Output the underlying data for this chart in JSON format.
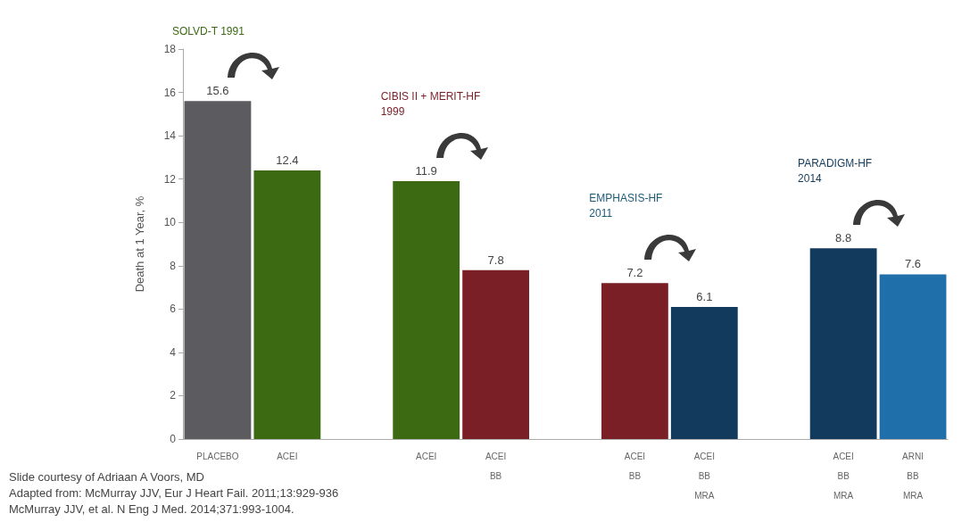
{
  "chart_data": {
    "type": "bar",
    "ylabel": "Death at 1 Year, %",
    "categories": [
      "PLACEBO",
      "ACEI",
      null,
      "ACEI",
      "ACEI\nBB",
      null,
      "ACEI\nBB",
      "ACEI\nBB\nMRA",
      null,
      "ACEI\nBB\nMRA",
      "ARNI\nBB\nMRA"
    ],
    "values": [
      15.6,
      12.4,
      null,
      11.9,
      7.8,
      null,
      7.2,
      6.1,
      null,
      8.8,
      7.6
    ],
    "colors": [
      "#5b5b60",
      "#3b6a12",
      null,
      "#3b6a12",
      "#7a1f26",
      null,
      "#7a1f26",
      "#123a5c",
      null,
      "#123a5c",
      "#1f70aa"
    ],
    "ylim": [
      0,
      18
    ],
    "yticks": [
      0,
      2,
      4,
      6,
      8,
      10,
      12,
      14,
      16,
      18
    ],
    "grid": false,
    "data_labels": true,
    "annotations": [
      "SOLVD-T 1991",
      "CIBIS II + MERIT-HF\n1999",
      "EMPHASIS-HF\n2011",
      "PARADIGM-HF\n2014",
      "Slide courtesy of Adriaan A Voors, MD",
      "Adapted from: McMurray JJV, Eur J Heart Fail. 2011;13:929-936",
      "McMurray JJV, et al. N Eng J Med. 2014;371:993-1004."
    ]
  }
}
